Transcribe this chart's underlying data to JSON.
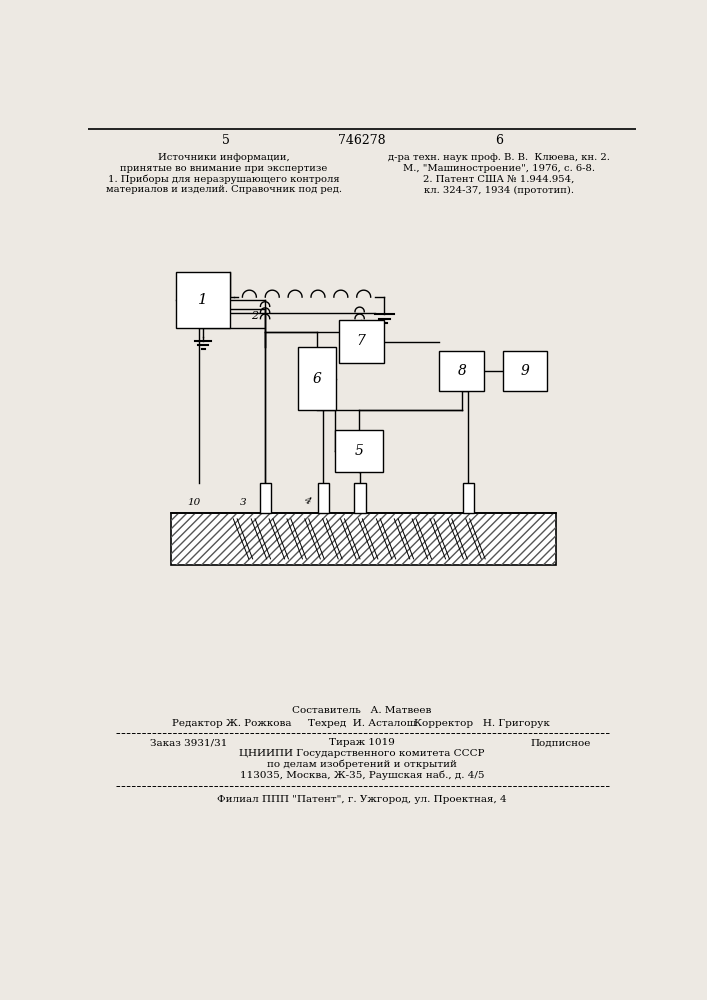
{
  "bg_color": "#ede9e3",
  "title_number": "746278",
  "page_left": "5",
  "page_right": "6",
  "top_left_text": [
    "Источники информации,",
    "принятые во внимание при экспертизе",
    "1. Приборы для неразрушающего контроля",
    "материалов и изделий. Справочник под ред."
  ],
  "top_right_text": [
    "д-ра техн. наук проф. В. В.  Клюева, кн. 2.",
    "М., \"Машиностроение\", 1976, с. 6-8.",
    "2. Патент США № 1.944.954,",
    "кл. 324-37, 1934 (прототип)."
  ],
  "editor": "Редактор Ж. Рожкова",
  "compositor": "Составитель   А. Матвеев",
  "techred": "Техред  И. Асталош",
  "corrector": "Корректор   Н. Григорук",
  "order": "Заказ 3931/31",
  "tirazh": "Тираж 1019",
  "podpisnoe": "Подписное",
  "cniipi_line1": "ЦНИИПИ Государственного комитета СССР",
  "cniipi_line2": "по делам изобретений и открытий",
  "cniipi_line3": "113035, Москва, Ж-35, Раушская наб., д. 4/5",
  "filial_line": "Филиал ППП \"Патент\", г. Ужгород, ул. Проектная, 4"
}
